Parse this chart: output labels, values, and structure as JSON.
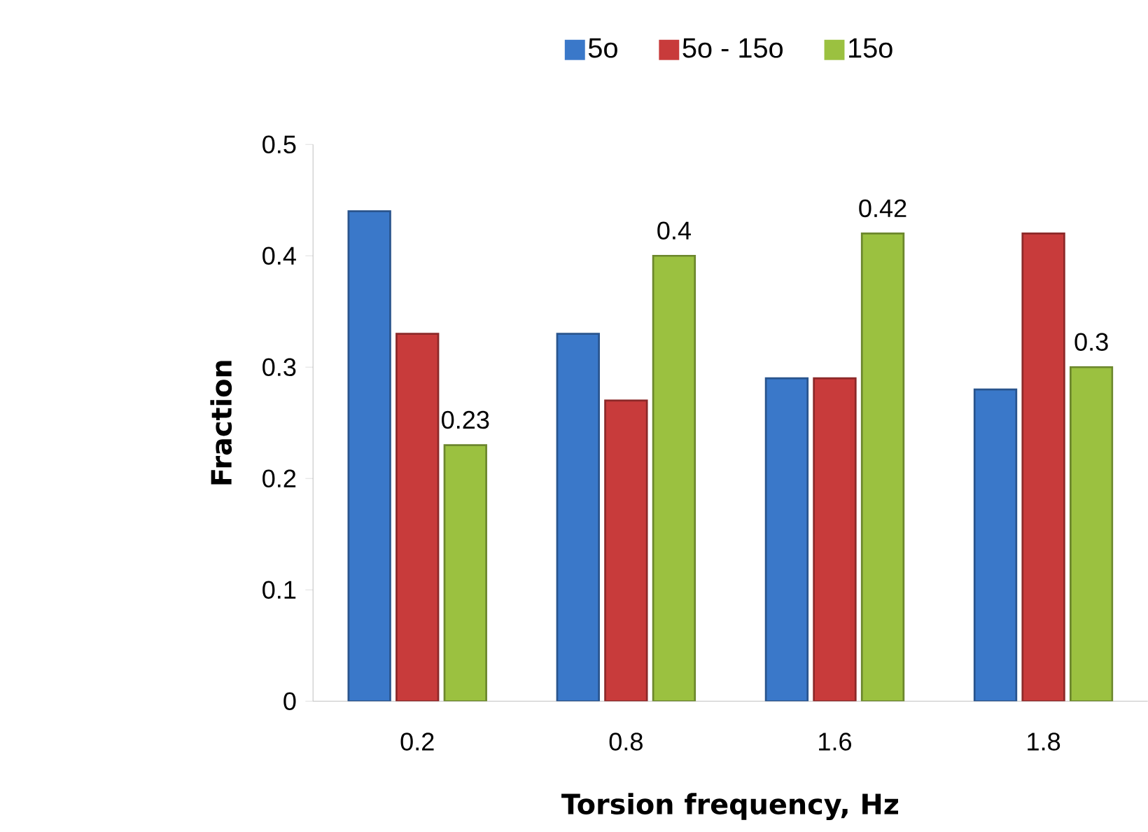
{
  "chart_data": {
    "type": "bar",
    "xlabel": "Torsion frequency, Hz",
    "ylabel": "Fraction",
    "categories": [
      "0.2",
      "0.8",
      "1.6",
      "1.8"
    ],
    "series": [
      {
        "name": "5o",
        "color": "#3a78c9",
        "values": [
          0.44,
          0.33,
          0.29,
          0.28
        ]
      },
      {
        "name": "5o - 15o",
        "color": "#c83b3b",
        "values": [
          0.33,
          0.27,
          0.29,
          0.42
        ]
      },
      {
        "name": "15o",
        "color": "#9bc140",
        "values": [
          0.23,
          0.4,
          0.42,
          0.3
        ],
        "value_labels": [
          "0.23",
          "0.4",
          "0.42",
          "0.3"
        ]
      }
    ],
    "ylim": [
      0,
      0.5
    ],
    "yticks": [
      0,
      0.1,
      0.2,
      0.3,
      0.4,
      0.5
    ],
    "legend": "top"
  }
}
